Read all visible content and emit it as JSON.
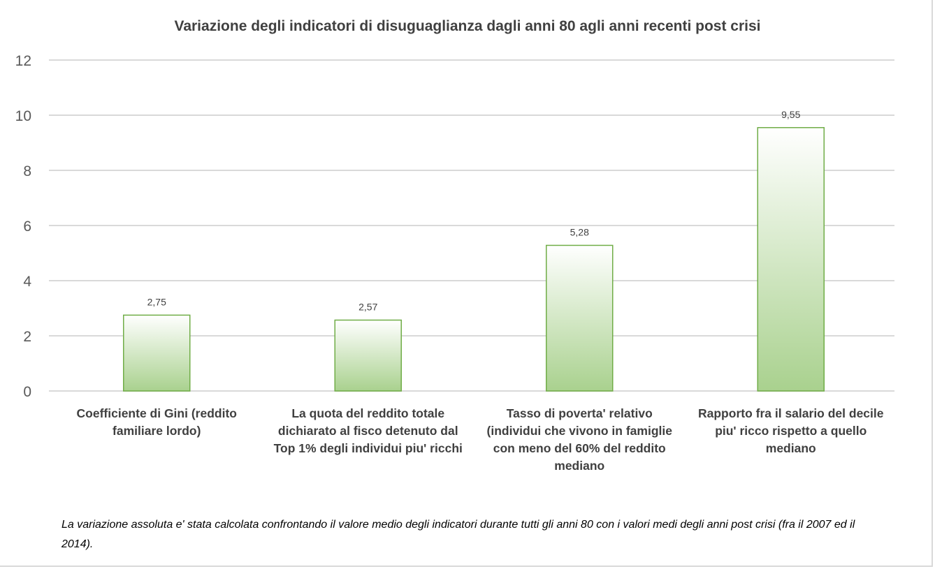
{
  "chart_data": {
    "type": "bar",
    "title": "Variazione degli indicatori di disuguaglianza dagli anni 80 agli anni recenti post crisi",
    "categories": [
      "Coefficiente di Gini (reddito familiare lordo)",
      "La quota del reddito totale dichiarato al fisco detenuto dal Top 1% degli individui piu' ricchi",
      "Tasso di poverta' relativo (individui che vivono in famiglie con meno del 60% del reddito mediano",
      "Rapporto fra il salario del decile piu' ricco rispetto a quello mediano"
    ],
    "values": [
      2.75,
      2.57,
      5.28,
      9.55
    ],
    "data_labels": [
      "2,75",
      "2,57",
      "5,28",
      "9,55"
    ],
    "ylim": [
      0,
      12
    ],
    "yticks": [
      0,
      2,
      4,
      6,
      8,
      10,
      12
    ],
    "xlabel": "",
    "ylabel": "",
    "grid": true,
    "bar_color": "#a9d18e",
    "bar_border": "#70ad47"
  },
  "note": "La variazione assoluta e' stata calcolata confrontando il valore medio degli indicatori durante tutti gli anni 80 con i valori medi degli anni post crisi (fra il 2007 ed il 2014)."
}
